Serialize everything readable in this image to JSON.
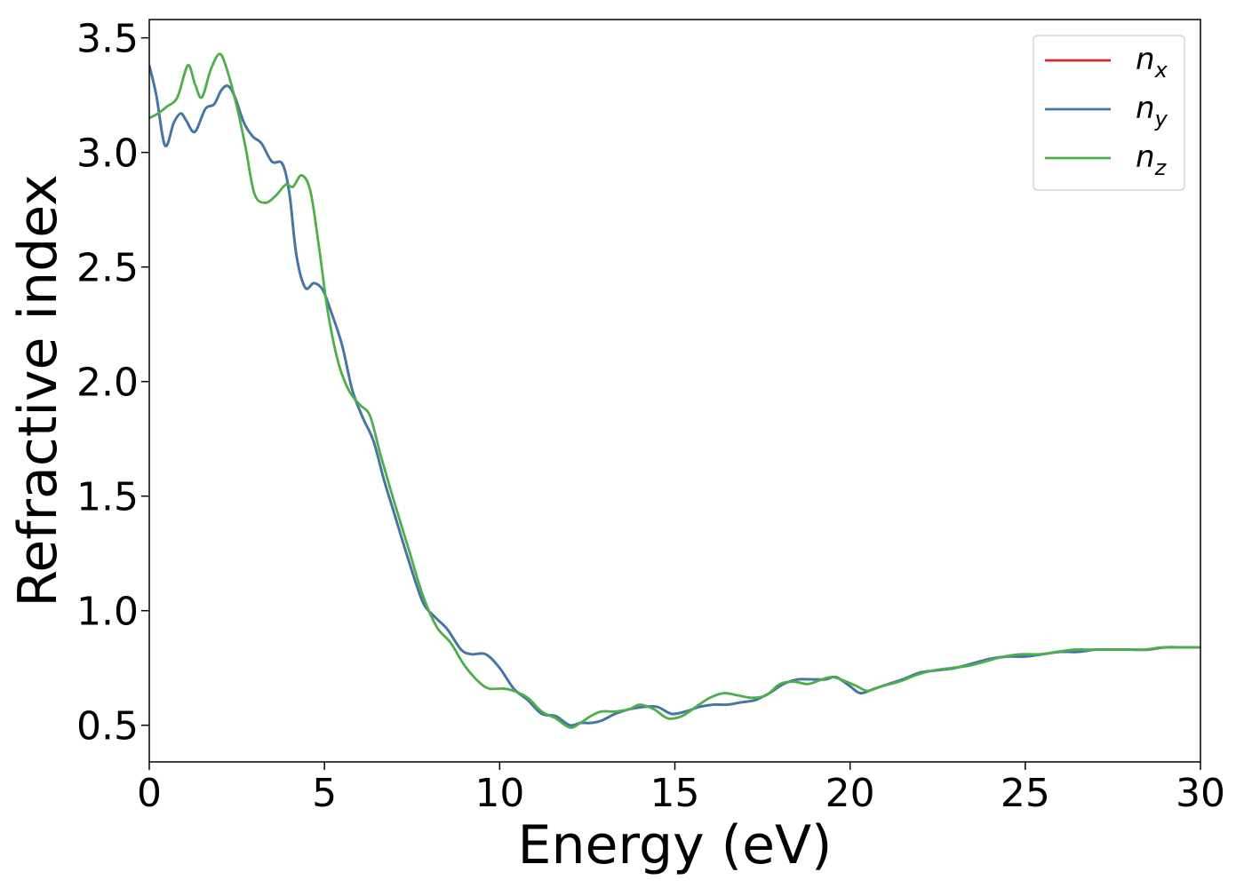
{
  "chart_data": {
    "type": "line",
    "title": "",
    "xlabel": "Energy (eV)",
    "ylabel": "Refractive index",
    "xlim": [
      0,
      30
    ],
    "ylim": [
      0.34,
      3.58
    ],
    "xticks": [
      0,
      5,
      10,
      15,
      20,
      25,
      30
    ],
    "xtick_labels": [
      "0",
      "5",
      "10",
      "15",
      "20",
      "25",
      "30"
    ],
    "yticks": [
      0.5,
      1.0,
      1.5,
      2.0,
      2.5,
      3.0,
      3.5
    ],
    "ytick_labels": [
      "0.5",
      "1.0",
      "1.5",
      "2.0",
      "2.5",
      "3.0",
      "3.5"
    ],
    "grid": false,
    "legend": {
      "placement": "top-right",
      "entries": [
        {
          "base": "n",
          "sub": "x"
        },
        {
          "base": "n",
          "sub": "y"
        },
        {
          "base": "n",
          "sub": "z"
        }
      ]
    },
    "series": [
      {
        "name": "n_x",
        "color": "#d62728",
        "x": [
          0,
          0.2,
          0.45,
          0.7,
          0.9,
          1.05,
          1.3,
          1.6,
          1.85,
          2.05,
          2.25,
          2.45,
          2.7,
          2.95,
          3.2,
          3.5,
          3.8,
          4.0,
          4.2,
          4.45,
          4.7,
          4.95,
          5.2,
          5.5,
          5.8,
          6.1,
          6.4,
          6.7,
          7.0,
          7.4,
          7.8,
          8.1,
          8.5,
          8.9,
          9.2,
          9.6,
          10.0,
          10.4,
          10.8,
          11.2,
          11.6,
          12.0,
          12.3,
          12.6,
          12.9,
          13.3,
          13.7,
          14.1,
          14.5,
          14.9,
          15.3,
          15.7,
          16.1,
          16.5,
          16.9,
          17.3,
          17.7,
          18.1,
          18.5,
          18.9,
          19.3,
          19.6,
          20.0,
          20.3,
          20.7,
          21.1,
          21.5,
          22.0,
          22.5,
          23.0,
          23.5,
          24.0,
          24.5,
          25.0,
          25.5,
          26.0,
          26.5,
          27.0,
          27.5,
          28.0,
          28.5,
          29.0,
          29.5,
          30.0
        ],
        "y": [
          3.38,
          3.25,
          3.03,
          3.13,
          3.17,
          3.14,
          3.09,
          3.19,
          3.21,
          3.27,
          3.29,
          3.24,
          3.13,
          3.07,
          3.04,
          2.96,
          2.95,
          2.82,
          2.55,
          2.41,
          2.43,
          2.4,
          2.3,
          2.16,
          1.96,
          1.84,
          1.74,
          1.57,
          1.42,
          1.22,
          1.04,
          0.98,
          0.92,
          0.83,
          0.81,
          0.81,
          0.75,
          0.66,
          0.61,
          0.55,
          0.54,
          0.5,
          0.51,
          0.51,
          0.52,
          0.55,
          0.57,
          0.58,
          0.58,
          0.55,
          0.56,
          0.58,
          0.59,
          0.59,
          0.6,
          0.61,
          0.64,
          0.68,
          0.7,
          0.7,
          0.7,
          0.71,
          0.67,
          0.64,
          0.66,
          0.68,
          0.7,
          0.73,
          0.74,
          0.75,
          0.77,
          0.79,
          0.8,
          0.8,
          0.81,
          0.82,
          0.82,
          0.83,
          0.83,
          0.83,
          0.83,
          0.84,
          0.84,
          0.84
        ]
      },
      {
        "name": "n_y",
        "color": "#3f78aa",
        "x": [
          0,
          0.2,
          0.45,
          0.7,
          0.9,
          1.05,
          1.3,
          1.6,
          1.85,
          2.05,
          2.25,
          2.45,
          2.7,
          2.95,
          3.2,
          3.5,
          3.8,
          4.0,
          4.2,
          4.45,
          4.7,
          4.95,
          5.2,
          5.5,
          5.8,
          6.1,
          6.4,
          6.7,
          7.0,
          7.4,
          7.8,
          8.1,
          8.5,
          8.9,
          9.2,
          9.6,
          10.0,
          10.4,
          10.8,
          11.2,
          11.6,
          12.0,
          12.3,
          12.6,
          12.9,
          13.3,
          13.7,
          14.1,
          14.5,
          14.9,
          15.3,
          15.7,
          16.1,
          16.5,
          16.9,
          17.3,
          17.7,
          18.1,
          18.5,
          18.9,
          19.3,
          19.6,
          20.0,
          20.3,
          20.7,
          21.1,
          21.5,
          22.0,
          22.5,
          23.0,
          23.5,
          24.0,
          24.5,
          25.0,
          25.5,
          26.0,
          26.5,
          27.0,
          27.5,
          28.0,
          28.5,
          29.0,
          29.5,
          30.0
        ],
        "y": [
          3.38,
          3.25,
          3.03,
          3.13,
          3.17,
          3.14,
          3.09,
          3.19,
          3.21,
          3.27,
          3.29,
          3.24,
          3.13,
          3.07,
          3.04,
          2.96,
          2.95,
          2.82,
          2.55,
          2.41,
          2.43,
          2.4,
          2.3,
          2.16,
          1.96,
          1.84,
          1.74,
          1.57,
          1.42,
          1.22,
          1.04,
          0.98,
          0.92,
          0.83,
          0.81,
          0.81,
          0.75,
          0.66,
          0.61,
          0.55,
          0.54,
          0.5,
          0.51,
          0.51,
          0.52,
          0.55,
          0.57,
          0.58,
          0.58,
          0.55,
          0.56,
          0.58,
          0.59,
          0.59,
          0.6,
          0.61,
          0.64,
          0.68,
          0.7,
          0.7,
          0.7,
          0.71,
          0.67,
          0.64,
          0.66,
          0.68,
          0.7,
          0.73,
          0.74,
          0.75,
          0.77,
          0.79,
          0.8,
          0.8,
          0.81,
          0.82,
          0.82,
          0.83,
          0.83,
          0.83,
          0.83,
          0.84,
          0.84,
          0.84
        ]
      },
      {
        "name": "n_z",
        "color": "#4daf4a",
        "x": [
          0,
          0.25,
          0.5,
          0.8,
          1.1,
          1.3,
          1.5,
          1.75,
          2.0,
          2.2,
          2.5,
          2.75,
          3.0,
          3.3,
          3.6,
          3.9,
          4.1,
          4.35,
          4.6,
          4.85,
          5.1,
          5.4,
          5.7,
          6.0,
          6.3,
          6.6,
          7.0,
          7.4,
          7.8,
          8.2,
          8.6,
          9.0,
          9.4,
          9.7,
          10.1,
          10.4,
          10.8,
          11.2,
          11.6,
          12.0,
          12.3,
          12.6,
          12.9,
          13.3,
          13.7,
          14.0,
          14.4,
          14.8,
          15.2,
          15.6,
          16.0,
          16.4,
          16.8,
          17.2,
          17.6,
          18.0,
          18.4,
          18.8,
          19.2,
          19.5,
          19.9,
          20.2,
          20.5,
          20.9,
          21.4,
          21.9,
          22.4,
          22.9,
          23.4,
          23.9,
          24.4,
          24.9,
          25.4,
          25.9,
          26.4,
          26.9,
          27.4,
          27.9,
          28.4,
          28.9,
          29.4,
          30.0
        ],
        "y": [
          3.15,
          3.17,
          3.2,
          3.24,
          3.38,
          3.3,
          3.24,
          3.36,
          3.43,
          3.37,
          3.2,
          3.02,
          2.82,
          2.78,
          2.81,
          2.86,
          2.85,
          2.9,
          2.83,
          2.58,
          2.3,
          2.08,
          1.96,
          1.9,
          1.85,
          1.68,
          1.47,
          1.27,
          1.07,
          0.93,
          0.86,
          0.76,
          0.69,
          0.66,
          0.66,
          0.65,
          0.62,
          0.56,
          0.53,
          0.49,
          0.51,
          0.54,
          0.56,
          0.56,
          0.57,
          0.59,
          0.57,
          0.53,
          0.54,
          0.58,
          0.62,
          0.64,
          0.63,
          0.62,
          0.63,
          0.68,
          0.69,
          0.68,
          0.7,
          0.71,
          0.69,
          0.67,
          0.65,
          0.67,
          0.69,
          0.72,
          0.74,
          0.75,
          0.76,
          0.78,
          0.8,
          0.81,
          0.81,
          0.82,
          0.83,
          0.83,
          0.83,
          0.83,
          0.83,
          0.84,
          0.84,
          0.84
        ]
      }
    ]
  }
}
